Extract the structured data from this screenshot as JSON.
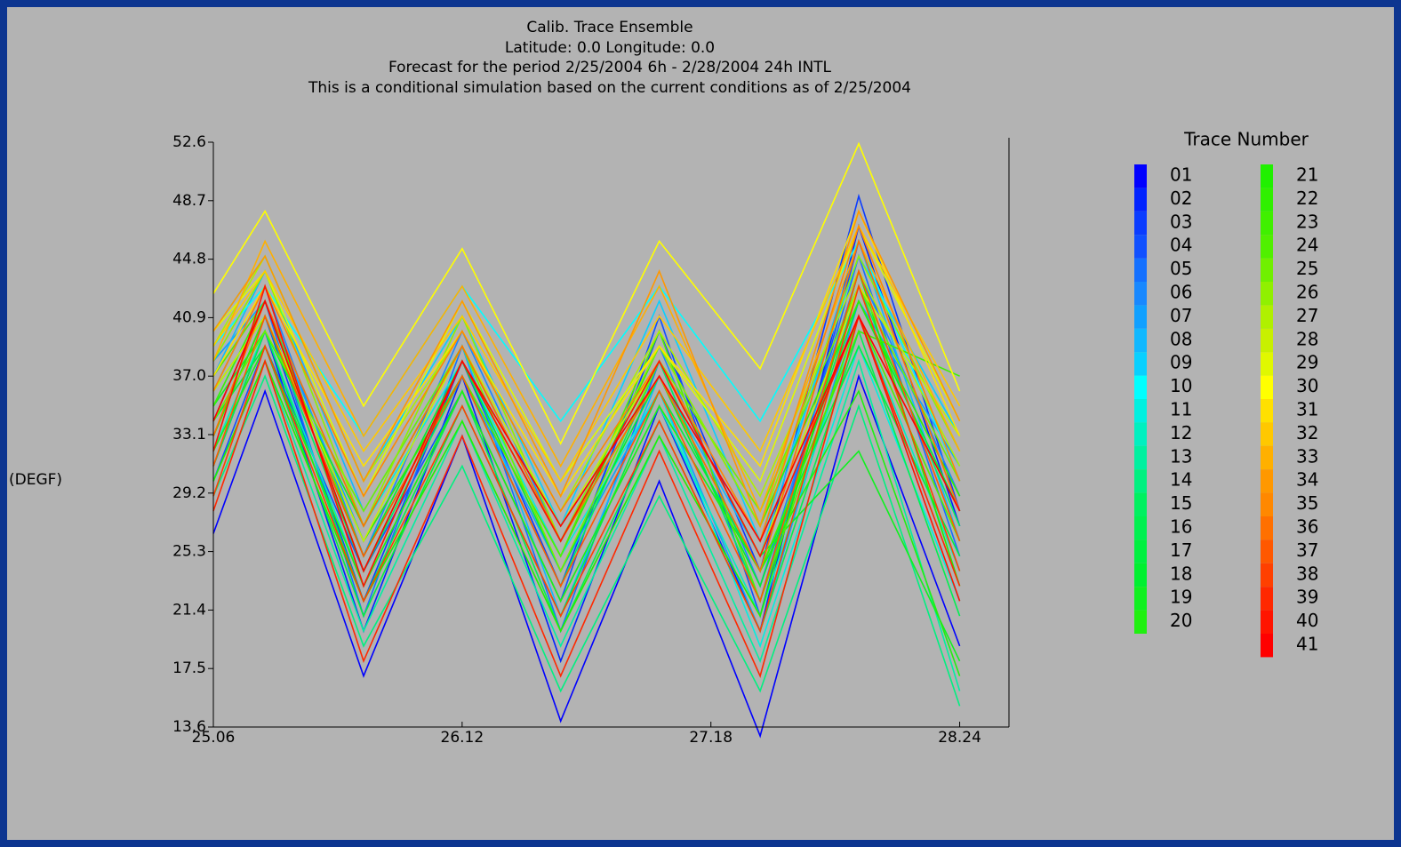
{
  "chart_data": {
    "type": "line",
    "title_lines": [
      "Calib. Trace Ensemble",
      "Latitude: 0.0    Longitude:  0.0",
      "Forecast for the period 2/25/2004 6h - 2/28/2004 24h INTL",
      "This is a conditional simulation based on the current conditions as of 2/25/2004"
    ],
    "y_label": "(DEGF)",
    "legend_title": "Trace Number",
    "x": [
      25.06,
      25.28,
      25.7,
      26.12,
      26.54,
      26.96,
      27.39,
      27.81,
      28.24
    ],
    "xlim": [
      25.06,
      28.45
    ],
    "xticks": [
      25.06,
      26.12,
      27.18,
      28.24
    ],
    "ylim": [
      13.6,
      52.6
    ],
    "yticks": [
      13.6,
      17.5,
      21.4,
      25.3,
      {
        "value": 29.2,
        "label": "29.2"
      },
      33.1,
      {
        "value": 37,
        "label": "37.0"
      },
      40.9,
      44.8,
      48.7,
      52.6
    ],
    "series": [
      {
        "name": "01",
        "color": "#0000ff",
        "values": [
          26.5,
          36,
          17,
          33,
          14,
          30,
          13,
          37,
          19
        ]
      },
      {
        "name": "02",
        "color": "#0022ff",
        "values": [
          31,
          40,
          20,
          37,
          18,
          35,
          20,
          47,
          27
        ]
      },
      {
        "name": "03",
        "color": "#0a3cff",
        "values": [
          33,
          41,
          22,
          38,
          23,
          40,
          24,
          49,
          28
        ]
      },
      {
        "name": "04",
        "color": "#1050ff",
        "values": [
          30,
          39,
          24,
          36,
          22,
          41,
          21,
          46,
          30
        ]
      },
      {
        "name": "05",
        "color": "#1470ff",
        "values": [
          34,
          42,
          21,
          39,
          20,
          38,
          22,
          45,
          25
        ]
      },
      {
        "name": "06",
        "color": "#1888ff",
        "values": [
          36,
          43,
          25,
          40,
          26,
          39,
          23,
          44,
          29
        ]
      },
      {
        "name": "07",
        "color": "#10a0ff",
        "values": [
          38,
          42,
          26,
          37,
          24,
          36,
          20,
          42,
          31
        ]
      },
      {
        "name": "08",
        "color": "#10b8ff",
        "values": [
          37,
          44,
          28,
          39,
          21,
          37,
          25,
          46,
          26
        ]
      },
      {
        "name": "09",
        "color": "#08d0ff",
        "values": [
          40,
          45,
          30,
          41,
          27,
          42,
          26,
          45,
          33
        ]
      },
      {
        "name": "10",
        "color": "#00ffff",
        "values": [
          39,
          43,
          33,
          43,
          34,
          43,
          34,
          46,
          30
        ]
      },
      {
        "name": "11",
        "color": "#00f0e0",
        "values": [
          35,
          42,
          27,
          38,
          25,
          36,
          19,
          39,
          22
        ]
      },
      {
        "name": "12",
        "color": "#00f0c0",
        "values": [
          32,
          40,
          23,
          36,
          22,
          35,
          21,
          41,
          24
        ]
      },
      {
        "name": "13",
        "color": "#00f0a0",
        "values": [
          30,
          38,
          20,
          34,
          19,
          33,
          18,
          38,
          16
        ]
      },
      {
        "name": "14",
        "color": "#00f080",
        "values": [
          29,
          37,
          19,
          31,
          16,
          29,
          16,
          35,
          15
        ]
      },
      {
        "name": "15",
        "color": "#00f060",
        "values": [
          33,
          41,
          24,
          37,
          23,
          38,
          22,
          43,
          27
        ]
      },
      {
        "name": "16",
        "color": "#00f050",
        "values": [
          31,
          40,
          22,
          36,
          20,
          34,
          20,
          40,
          21
        ]
      },
      {
        "name": "17",
        "color": "#00f040",
        "values": [
          34,
          39,
          21,
          35,
          21,
          36,
          24,
          39,
          25
        ]
      },
      {
        "name": "18",
        "color": "#00f030",
        "values": [
          36,
          41,
          25,
          38,
          24,
          37,
          23,
          42,
          28
        ]
      },
      {
        "name": "19",
        "color": "#10f020",
        "values": [
          35,
          40,
          27,
          39,
          26,
          38,
          25,
          32,
          18
        ]
      },
      {
        "name": "20",
        "color": "#20f010",
        "values": [
          32,
          39,
          23,
          36,
          22,
          35,
          24,
          36,
          17
        ]
      },
      {
        "name": "21",
        "color": "#20f000",
        "values": [
          30,
          38,
          22,
          34,
          20,
          33,
          21,
          44,
          23
        ]
      },
      {
        "name": "22",
        "color": "#30f000",
        "values": [
          33,
          41,
          26,
          37,
          25,
          39,
          27,
          42,
          29
        ]
      },
      {
        "name": "23",
        "color": "#40f000",
        "values": [
          35,
          42,
          24,
          38,
          26,
          37,
          24,
          40,
          37
        ]
      },
      {
        "name": "24",
        "color": "#50f000",
        "values": [
          37,
          42,
          25,
          37,
          25,
          40,
          22,
          41,
          26
        ]
      },
      {
        "name": "25",
        "color": "#70f000",
        "values": [
          34,
          40,
          28,
          39,
          24,
          38,
          28,
          43,
          30
        ]
      },
      {
        "name": "26",
        "color": "#90f000",
        "values": [
          38,
          44,
          27,
          41,
          26,
          39,
          27,
          45,
          32
        ]
      },
      {
        "name": "27",
        "color": "#b0f000",
        "values": [
          39,
          45,
          30,
          40,
          28,
          40,
          29,
          44,
          31
        ]
      },
      {
        "name": "28",
        "color": "#c8f000",
        "values": [
          36,
          41,
          26,
          39,
          27,
          38,
          25,
          43,
          33
        ]
      },
      {
        "name": "29",
        "color": "#e0f800",
        "values": [
          40,
          44,
          29,
          42,
          30,
          39,
          30,
          47,
          34
        ]
      },
      {
        "name": "30",
        "color": "#ffff00",
        "values": [
          42.5,
          48,
          35,
          45.5,
          32.5,
          46,
          37.5,
          52.5,
          36
        ]
      },
      {
        "name": "31",
        "color": "#ffe000",
        "values": [
          37,
          43,
          31,
          40,
          29,
          39,
          31,
          48,
          33
        ]
      },
      {
        "name": "32",
        "color": "#ffc800",
        "values": [
          39,
          44,
          32,
          41,
          30,
          41,
          32,
          47,
          35
        ]
      },
      {
        "name": "33",
        "color": "#ffb000",
        "values": [
          38,
          46,
          33,
          43,
          31,
          43,
          28,
          46,
          32
        ]
      },
      {
        "name": "34",
        "color": "#ff9800",
        "values": [
          40,
          45,
          30,
          42,
          29,
          44,
          27,
          48,
          34
        ]
      },
      {
        "name": "35",
        "color": "#ff8800",
        "values": [
          36,
          43,
          29,
          40,
          28,
          38,
          26,
          47,
          30
        ]
      },
      {
        "name": "36",
        "color": "#ff7000",
        "values": [
          33,
          42,
          27,
          39,
          26,
          37,
          24,
          46,
          28
        ]
      },
      {
        "name": "37",
        "color": "#ff5800",
        "values": [
          31,
          41,
          25,
          37,
          23,
          36,
          22,
          44,
          26
        ]
      },
      {
        "name": "38",
        "color": "#ff4000",
        "values": [
          29,
          39,
          22,
          35,
          21,
          34,
          20,
          43,
          24
        ]
      },
      {
        "name": "39",
        "color": "#ff2800",
        "values": [
          28,
          38,
          18,
          33,
          17,
          32,
          17,
          41,
          23
        ]
      },
      {
        "name": "40",
        "color": "#ff1400",
        "values": [
          32,
          43,
          23,
          38,
          26,
          38,
          25,
          41,
          22
        ]
      },
      {
        "name": "41",
        "color": "#ff0000",
        "values": [
          34,
          42,
          24,
          38,
          27,
          37,
          26,
          41,
          28
        ]
      }
    ]
  }
}
